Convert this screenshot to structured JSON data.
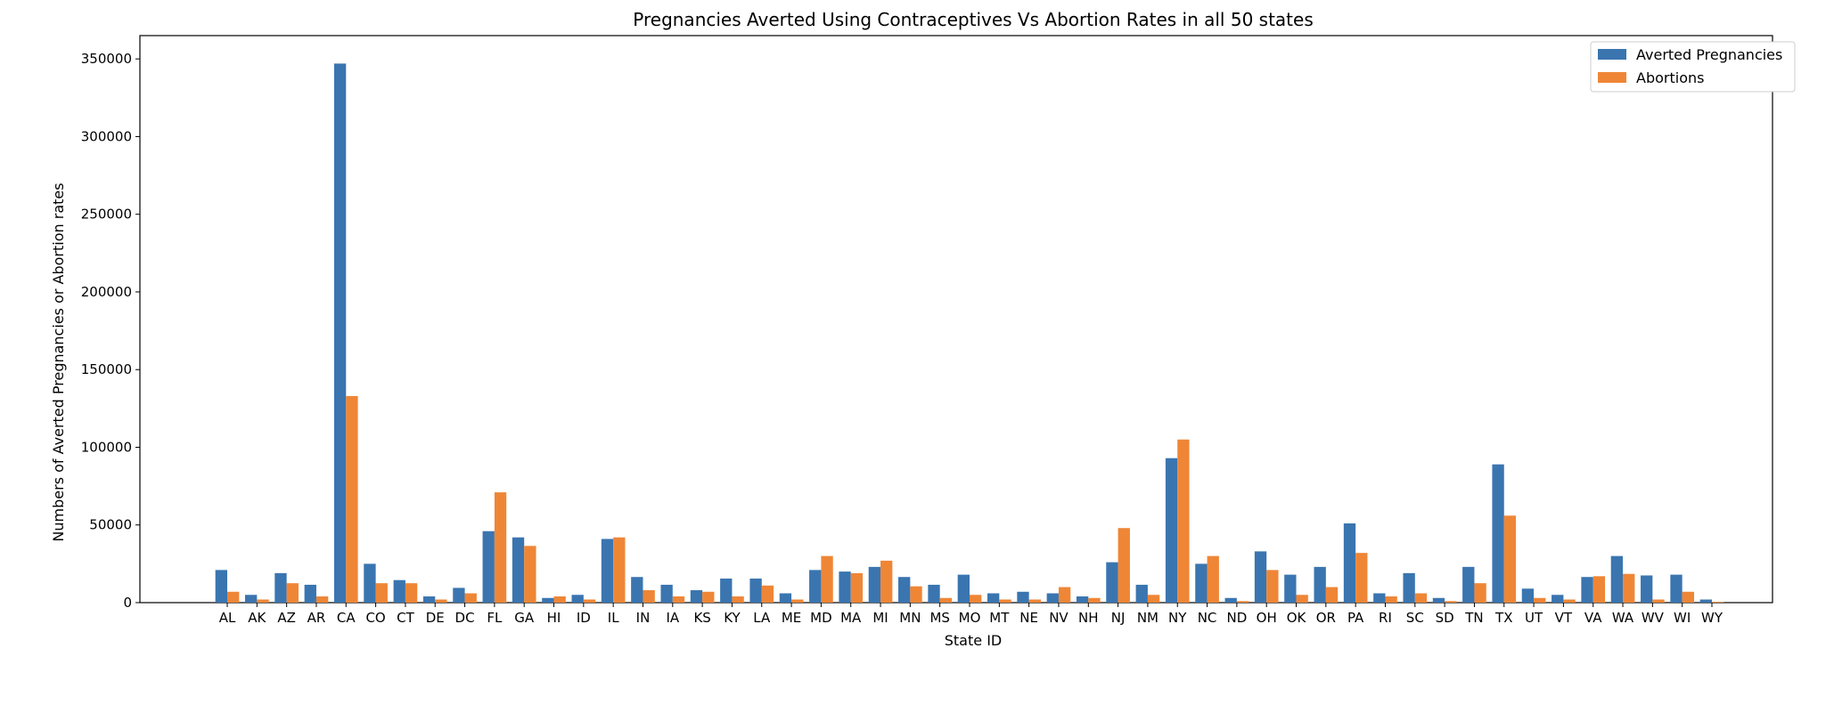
{
  "chart_data": {
    "type": "bar",
    "title": "Pregnancies Averted Using Contraceptives Vs Abortion Rates in all 50 states",
    "xlabel": "State ID",
    "ylabel": "Numbers of Averted Pregnancies or Abortion rates",
    "ylim": [
      0,
      365000
    ],
    "yticks": [
      0,
      50000,
      100000,
      150000,
      200000,
      250000,
      300000,
      350000
    ],
    "grid": false,
    "legend_position": "top-right",
    "categories": [
      "AL",
      "AK",
      "AZ",
      "AR",
      "CA",
      "CO",
      "CT",
      "DE",
      "DC",
      "FL",
      "GA",
      "HI",
      "ID",
      "IL",
      "IN",
      "IA",
      "KS",
      "KY",
      "LA",
      "ME",
      "MD",
      "MA",
      "MI",
      "MN",
      "MS",
      "MO",
      "MT",
      "NE",
      "NV",
      "NH",
      "NJ",
      "NM",
      "NY",
      "NC",
      "ND",
      "OH",
      "OK",
      "OR",
      "PA",
      "RI",
      "SC",
      "SD",
      "TN",
      "TX",
      "UT",
      "VT",
      "VA",
      "WA",
      "WV",
      "WI",
      "WY"
    ],
    "series": [
      {
        "name": "Averted Pregnancies",
        "color": "#3a75b0",
        "values": [
          21000,
          5000,
          19000,
          11500,
          347000,
          25000,
          14500,
          4000,
          9500,
          46000,
          42000,
          3000,
          5000,
          41000,
          16500,
          11500,
          8000,
          15500,
          15500,
          6000,
          21000,
          20000,
          23000,
          16500,
          11500,
          18000,
          6000,
          7000,
          6000,
          4000,
          26000,
          11500,
          93000,
          25000,
          3000,
          33000,
          18000,
          23000,
          51000,
          6000,
          19000,
          3000,
          23000,
          89000,
          9000,
          5000,
          16500,
          30000,
          17500,
          18000,
          2000
        ]
      },
      {
        "name": "Abortions",
        "color": "#ef8636",
        "values": [
          7000,
          2000,
          12500,
          4000,
          133000,
          12500,
          12500,
          2000,
          6000,
          71000,
          36500,
          4000,
          2000,
          42000,
          8000,
          4000,
          7000,
          4000,
          11000,
          2000,
          30000,
          19000,
          27000,
          10500,
          3000,
          5000,
          2000,
          2000,
          10000,
          3000,
          48000,
          5000,
          105000,
          30000,
          1000,
          21000,
          5000,
          10000,
          32000,
          4000,
          6000,
          1000,
          12500,
          56000,
          3000,
          2000,
          17000,
          18500,
          2000,
          7000,
          500
        ]
      }
    ]
  }
}
